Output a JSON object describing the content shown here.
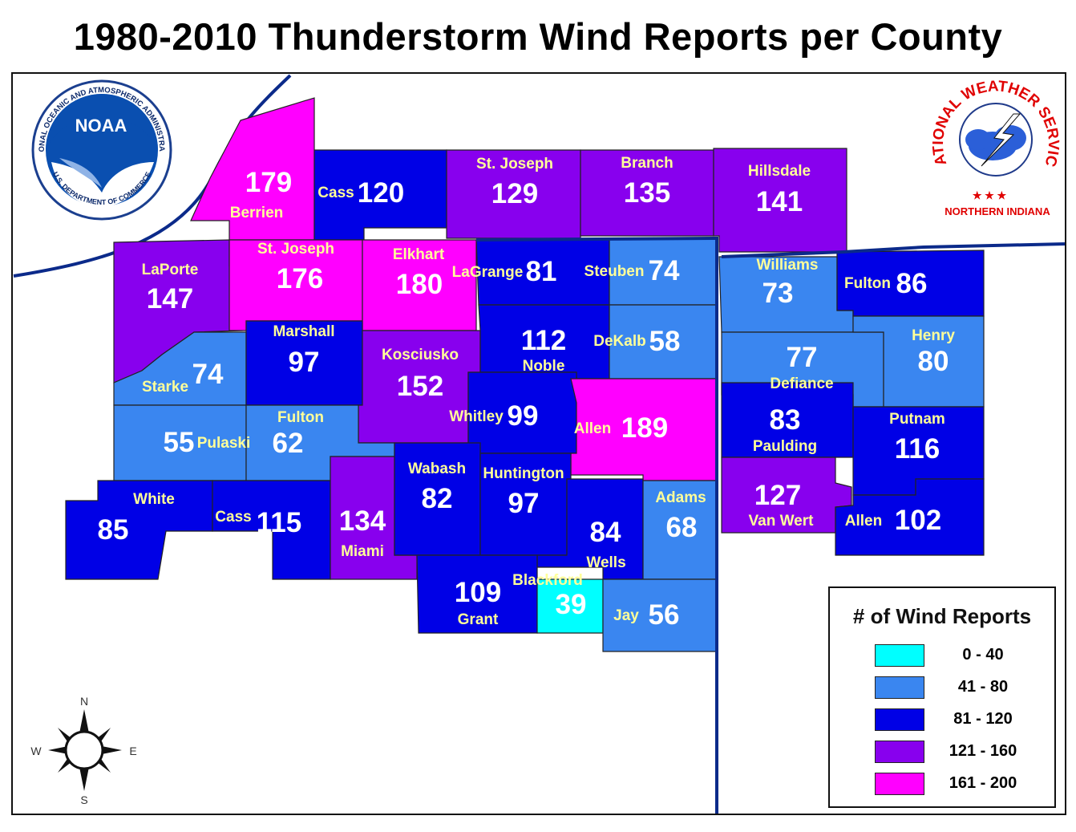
{
  "title": "1980-2010 Thunderstorm Wind Reports per County",
  "logos": {
    "noaa": {
      "center_text": "NOAA",
      "ring_text": "NATIONAL OCEANIC AND ATMOSPHERIC ADMINISTRATION",
      "ring_text_bottom": "U.S. DEPARTMENT OF COMMERCE"
    },
    "nws": {
      "ring_text": "NATIONAL WEATHER SERVICE",
      "subtitle": "NORTHERN INDIANA"
    }
  },
  "compass": {
    "n": "N",
    "s": "S",
    "e": "E",
    "w": "W"
  },
  "legend": {
    "title": "# of Wind Reports",
    "bins": [
      {
        "label": "0 - 40",
        "color": "#00ffff"
      },
      {
        "label": "41 - 80",
        "color": "#3a86f0"
      },
      {
        "label": "81 - 120",
        "color": "#0000e6"
      },
      {
        "label": "121 - 160",
        "color": "#8800ee"
      },
      {
        "label": "161 - 200",
        "color": "#ff00ff"
      }
    ]
  },
  "counties": [
    {
      "name": "Berrien",
      "value": 179
    },
    {
      "name": "Cass",
      "value": 120
    },
    {
      "name": "St. Joseph",
      "value": 129
    },
    {
      "name": "Branch",
      "value": 135
    },
    {
      "name": "Hillsdale",
      "value": 141
    },
    {
      "name": "LaPorte",
      "value": 147
    },
    {
      "name": "St. Joseph",
      "value": 176
    },
    {
      "name": "Elkhart",
      "value": 180
    },
    {
      "name": "LaGrange",
      "value": 81
    },
    {
      "name": "Steuben",
      "value": 74
    },
    {
      "name": "Williams",
      "value": 73
    },
    {
      "name": "Fulton",
      "value": 86
    },
    {
      "name": "Starke",
      "value": 74
    },
    {
      "name": "Marshall",
      "value": 97
    },
    {
      "name": "Kosciusko",
      "value": 152
    },
    {
      "name": "Noble",
      "value": 112
    },
    {
      "name": "DeKalb",
      "value": 58
    },
    {
      "name": "Defiance",
      "value": 77
    },
    {
      "name": "Henry",
      "value": 80
    },
    {
      "name": "Pulaski",
      "value": 55
    },
    {
      "name": "Fulton",
      "value": 62
    },
    {
      "name": "Whitley",
      "value": 99
    },
    {
      "name": "Allen",
      "value": 189
    },
    {
      "name": "Paulding",
      "value": 83
    },
    {
      "name": "Putnam",
      "value": 116
    },
    {
      "name": "White",
      "value": 85
    },
    {
      "name": "Cass",
      "value": 115
    },
    {
      "name": "Miami",
      "value": 134
    },
    {
      "name": "Wabash",
      "value": 82
    },
    {
      "name": "Huntington",
      "value": 97
    },
    {
      "name": "Wells",
      "value": 84
    },
    {
      "name": "Adams",
      "value": 68
    },
    {
      "name": "Van Wert",
      "value": 127
    },
    {
      "name": "Allen",
      "value": 102
    },
    {
      "name": "Grant",
      "value": 109
    },
    {
      "name": "Blackford",
      "value": 39
    },
    {
      "name": "Jay",
      "value": 56
    }
  ]
}
